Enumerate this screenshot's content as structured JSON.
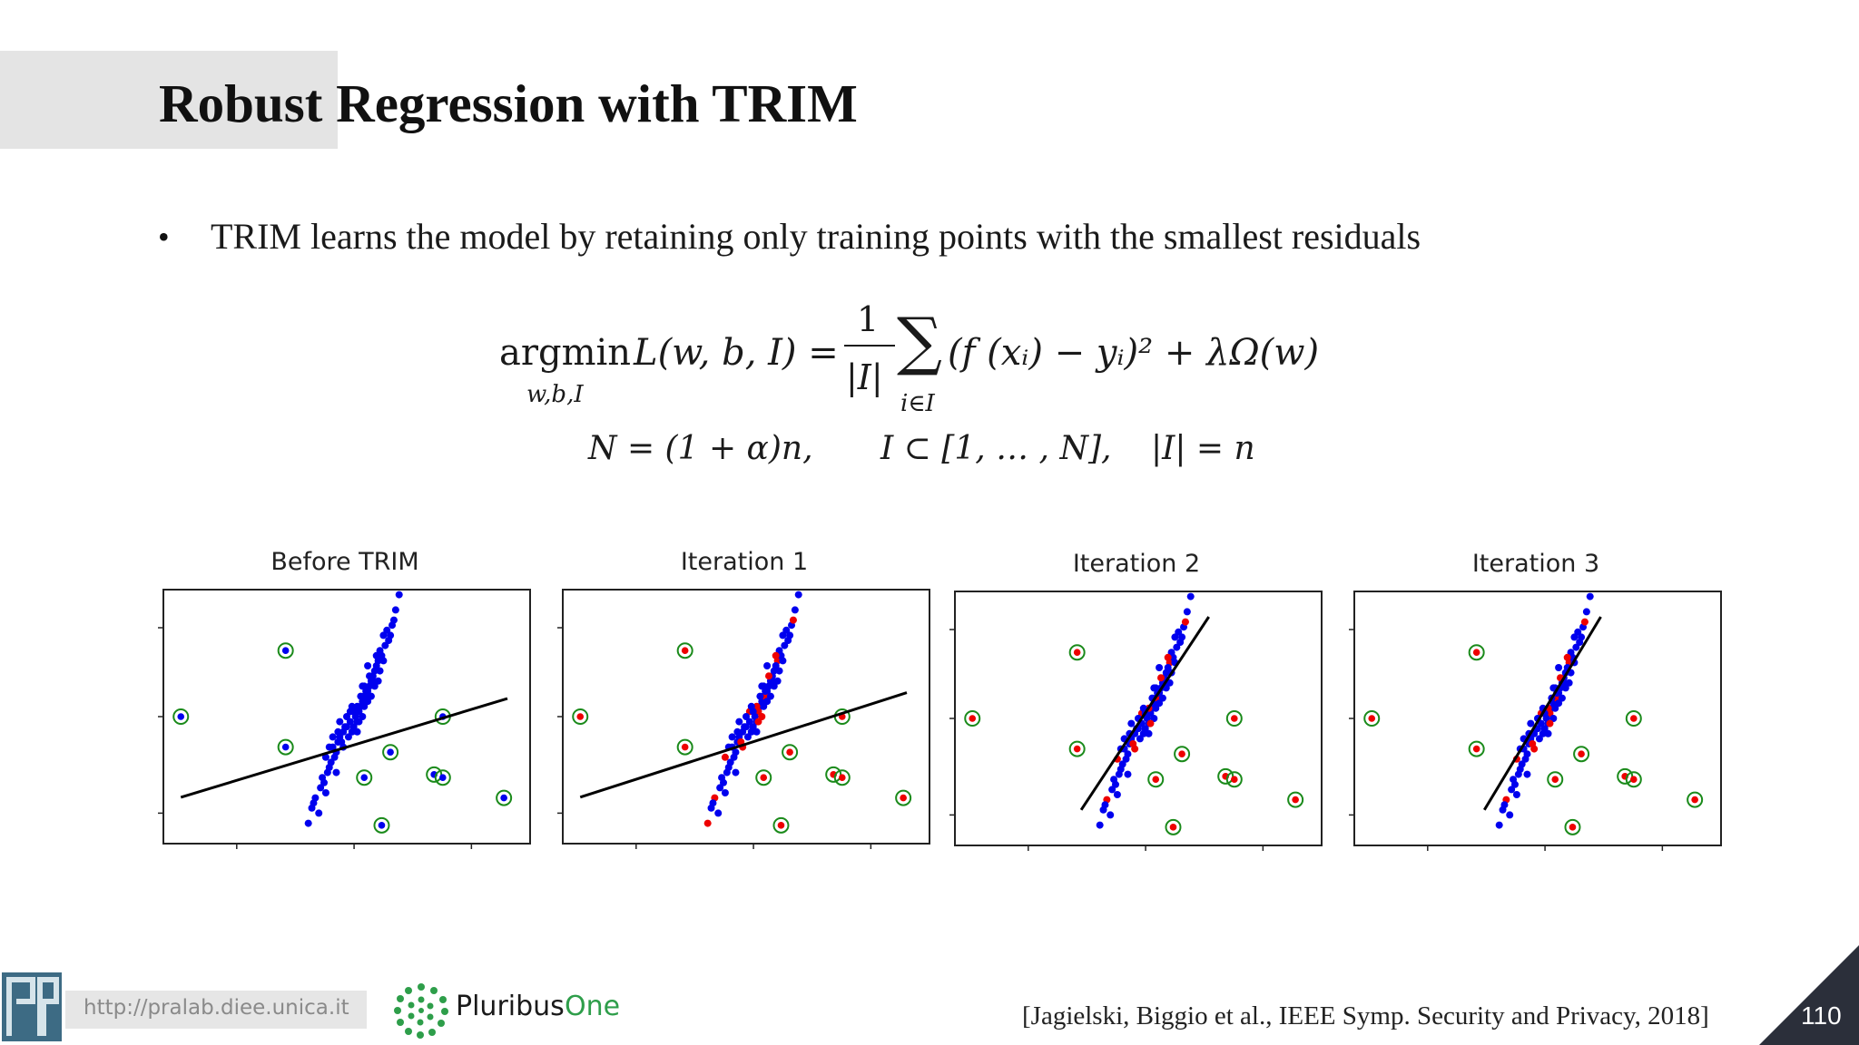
{
  "slide": {
    "title": "Robust Regression with TRIM",
    "bullet": "TRIM learns the model by retaining only training points with the smallest residuals",
    "bullet_marker": "•"
  },
  "formula": {
    "argmin": "argmin",
    "argmin_sub": "w,b,I",
    "loss": "L(w, b, I) =",
    "frac_num": "1",
    "frac_den": "|I|",
    "sum": "∑",
    "sum_sub": "i∈I",
    "body": "(f (xᵢ) − yᵢ)² + λΩ(w)",
    "line2_a": "N = (1 + α)n,",
    "line2_b": "I ⊂ [1, … , N],",
    "line2_c": "|I| = n"
  },
  "panels": [
    {
      "title": "Before TRIM"
    },
    {
      "title": "Iteration 1"
    },
    {
      "title": "Iteration 2"
    },
    {
      "title": "Iteration 3"
    }
  ],
  "footer": {
    "url": "http://pralab.diee.unica.it",
    "brand": "Pluribus One",
    "brand_word1": "Pluribus",
    "brand_word2": "One",
    "citation": "[Jagielski, Biggio et al., IEEE Symp. Security and Privacy, 2018]",
    "page_number": "110"
  },
  "colors": {
    "inlier": "#0000ee",
    "trimmed": "#ee0000",
    "poison_ring": "#1a8a1a",
    "fit_line": "#000000",
    "brand_green": "#2e9e4a",
    "corner": "#2b2f3a"
  },
  "scatter_data": {
    "cluster": [
      [
        0.02,
        0.4
      ],
      [
        -0.05,
        0.1
      ],
      [
        0.1,
        0.55
      ],
      [
        -0.12,
        -0.05
      ],
      [
        0.06,
        0.3
      ],
      [
        0.15,
        0.75
      ],
      [
        -0.02,
        0.2
      ],
      [
        0.08,
        0.45
      ],
      [
        -0.08,
        0.05
      ],
      [
        0.12,
        0.6
      ],
      [
        0.0,
        0.35
      ],
      [
        0.18,
        0.9
      ],
      [
        -0.1,
        -0.15
      ],
      [
        0.04,
        0.25
      ],
      [
        0.09,
        0.5
      ],
      [
        -0.04,
        0.15
      ],
      [
        0.14,
        0.7
      ],
      [
        0.02,
        0.3
      ],
      [
        -0.06,
        0.0
      ],
      [
        0.11,
        0.55
      ],
      [
        0.2,
        0.95
      ],
      [
        -0.14,
        -0.25
      ],
      [
        0.07,
        0.4
      ],
      [
        0.03,
        0.2
      ],
      [
        0.16,
        0.8
      ],
      [
        -0.01,
        0.25
      ],
      [
        0.13,
        0.65
      ],
      [
        -0.09,
        -0.1
      ],
      [
        0.05,
        0.35
      ],
      [
        0.1,
        0.45
      ],
      [
        -0.03,
        0.1
      ],
      [
        0.17,
        0.85
      ],
      [
        0.01,
        0.15
      ],
      [
        0.08,
        0.55
      ],
      [
        -0.07,
        -0.05
      ],
      [
        0.12,
        0.5
      ],
      [
        0.22,
        1.05
      ],
      [
        -0.11,
        -0.2
      ],
      [
        0.06,
        0.45
      ],
      [
        0.15,
        0.7
      ],
      [
        -0.05,
        0.2
      ],
      [
        0.09,
        0.35
      ],
      [
        0.19,
        0.8
      ],
      [
        -0.13,
        -0.3
      ],
      [
        0.04,
        0.4
      ],
      [
        0.11,
        0.6
      ],
      [
        -0.02,
        0.05
      ],
      [
        0.14,
        0.55
      ],
      [
        0.0,
        0.25
      ],
      [
        0.07,
        0.3
      ],
      [
        -0.08,
        0.15
      ],
      [
        0.16,
        0.65
      ],
      [
        0.21,
        0.9
      ],
      [
        -0.15,
        -0.35
      ],
      [
        0.03,
        0.45
      ],
      [
        0.1,
        0.65
      ],
      [
        -0.04,
        0.3
      ],
      [
        0.13,
        0.75
      ],
      [
        0.18,
        0.7
      ],
      [
        -0.1,
        0.05
      ],
      [
        0.06,
        0.2
      ],
      [
        0.24,
        1.1
      ],
      [
        0.26,
        1.25
      ],
      [
        0.28,
        1.4
      ],
      [
        0.23,
        1.2
      ],
      [
        -0.18,
        -0.45
      ],
      [
        -0.2,
        -0.55
      ],
      [
        -0.16,
        -0.6
      ],
      [
        -0.22,
        -0.7
      ],
      [
        0.3,
        1.55
      ],
      [
        0.25,
        1.15
      ],
      [
        0.19,
        1.0
      ],
      [
        -0.12,
        -0.4
      ],
      [
        0.17,
        0.95
      ],
      [
        -0.06,
        -0.2
      ],
      [
        0.09,
        0.65
      ],
      [
        0.27,
        1.3
      ],
      [
        -0.19,
        -0.5
      ],
      [
        0.12,
        0.85
      ],
      [
        0.21,
        1.15
      ]
    ],
    "poison": [
      [
        -0.95,
        0.35
      ],
      [
        -0.35,
        1.0
      ],
      [
        -0.35,
        0.05
      ],
      [
        0.25,
        0.0
      ],
      [
        0.55,
        0.35
      ],
      [
        0.5,
        -0.22
      ],
      [
        0.55,
        -0.25
      ],
      [
        0.9,
        -0.45
      ],
      [
        0.1,
        -0.25
      ],
      [
        0.2,
        -0.72
      ]
    ],
    "fit_lines": [
      {
        "slope": 0.52,
        "intercept": 0.05
      },
      {
        "slope": 0.55,
        "intercept": 0.08
      },
      {
        "slope": 2.6,
        "intercept": 0.3
      },
      {
        "slope": 2.85,
        "intercept": 0.32
      }
    ],
    "trimmed_fraction": [
      0.0,
      0.18,
      0.14,
      0.15
    ]
  }
}
